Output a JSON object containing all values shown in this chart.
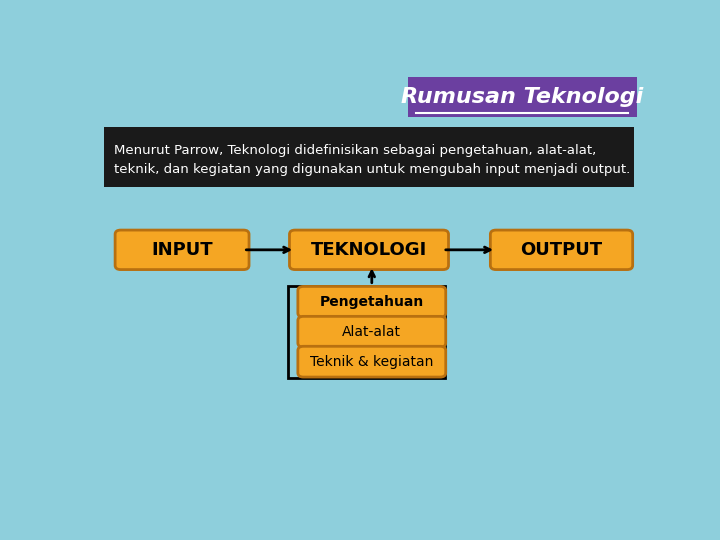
{
  "title": "Rumusan Teknologi",
  "title_bg": "#6b3fa0",
  "title_color": "#ffffff",
  "description_line1": "Menurut Parrow, Teknologi didefinisikan sebagai pengetahuan, alat-alat,",
  "description_line2": "teknik, dan kegiatan yang digunakan untuk mengubah input menjadi output.",
  "desc_bg": "#1a1a1a",
  "desc_color": "#ffffff",
  "box_color": "#f5a623",
  "box_edge": "#b87010",
  "box_text_color": "#000000",
  "bg_color": "#8ecfdc",
  "input_label": "INPUT",
  "teknologi_label": "TEKNOLOGI",
  "output_label": "OUTPUT",
  "sub_labels": [
    "Pengetahuan",
    "Alat-alat",
    "Teknik & kegiatan"
  ],
  "arrow_color": "#000000"
}
